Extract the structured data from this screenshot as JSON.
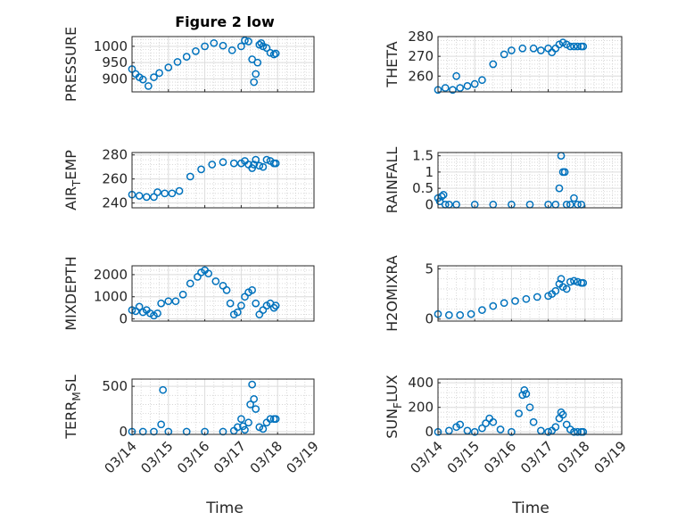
{
  "figure": {
    "title": "Figure 2 low",
    "xlabel": "Time",
    "marker_color": "#0072BD",
    "x_ticks": [
      "03/14",
      "03/15",
      "03/16",
      "03/17",
      "03/18",
      "03/19"
    ]
  },
  "chart_data": [
    {
      "type": "scatter",
      "ylabel": "PRESSURE",
      "title": "Figure 2 low",
      "xlim": [
        "03/14",
        "03/19"
      ],
      "ylim": [
        860,
        1030
      ],
      "yticks": [
        900,
        950,
        1000
      ],
      "grid": true,
      "x_days": [
        0,
        0.1,
        0.2,
        0.3,
        0.45,
        0.6,
        0.75,
        1.0,
        1.25,
        1.5,
        1.75,
        2.0,
        2.25,
        2.5,
        2.75,
        3.0,
        3.1,
        3.2,
        3.3,
        3.35,
        3.4,
        3.45,
        3.5,
        3.55,
        3.6,
        3.7,
        3.8,
        3.9,
        3.95
      ],
      "y": [
        930,
        915,
        905,
        898,
        878,
        905,
        918,
        935,
        952,
        968,
        985,
        1000,
        1010,
        1002,
        988,
        1000,
        1018,
        1015,
        960,
        890,
        915,
        950,
        1005,
        1010,
        1000,
        995,
        980,
        975,
        978
      ]
    },
    {
      "type": "scatter",
      "ylabel": "THETA",
      "xlim": [
        "03/14",
        "03/19"
      ],
      "ylim": [
        252,
        280
      ],
      "yticks": [
        260,
        270,
        280
      ],
      "grid": true,
      "x_days": [
        0,
        0.2,
        0.4,
        0.5,
        0.6,
        0.8,
        1.0,
        1.2,
        1.5,
        1.8,
        2.0,
        2.3,
        2.6,
        2.8,
        3.0,
        3.1,
        3.2,
        3.3,
        3.4,
        3.5,
        3.6,
        3.7,
        3.8,
        3.9,
        3.95
      ],
      "y": [
        253,
        254,
        253,
        260,
        254,
        255,
        256,
        258,
        266,
        271,
        273,
        274,
        274,
        273,
        274,
        272,
        274,
        276,
        277,
        276,
        275,
        275,
        275,
        275,
        275
      ]
    },
    {
      "type": "scatter",
      "ylabel": "AIR_TEMP",
      "xlim": [
        "03/14",
        "03/19"
      ],
      "ylim": [
        236,
        282
      ],
      "yticks": [
        240,
        260,
        280
      ],
      "grid": true,
      "x_days": [
        0,
        0.2,
        0.4,
        0.6,
        0.7,
        0.9,
        1.1,
        1.3,
        1.6,
        1.9,
        2.2,
        2.5,
        2.8,
        3.0,
        3.1,
        3.2,
        3.3,
        3.35,
        3.4,
        3.5,
        3.6,
        3.7,
        3.8,
        3.9,
        3.95
      ],
      "y": [
        247,
        246,
        245,
        245,
        249,
        248,
        248,
        250,
        262,
        268,
        272,
        274,
        273,
        273,
        275,
        272,
        269,
        272,
        276,
        271,
        270,
        276,
        275,
        273,
        273
      ]
    },
    {
      "type": "scatter",
      "ylabel": "RAINFALL",
      "xlim": [
        "03/14",
        "03/19"
      ],
      "ylim": [
        -0.1,
        1.6
      ],
      "yticks": [
        0,
        0.5,
        1,
        1.5
      ],
      "grid": true,
      "x_days": [
        0,
        0.05,
        0.1,
        0.15,
        0.2,
        0.3,
        0.5,
        1.0,
        1.5,
        2.0,
        2.5,
        3.0,
        3.2,
        3.3,
        3.35,
        3.4,
        3.45,
        3.5,
        3.6,
        3.7,
        3.8,
        3.9
      ],
      "y": [
        0.2,
        0.1,
        0.25,
        0.3,
        0,
        0,
        0,
        0,
        0,
        0,
        0,
        0,
        0,
        0.5,
        1.5,
        1.0,
        1.0,
        0,
        0,
        0.2,
        0,
        0
      ]
    },
    {
      "type": "scatter",
      "ylabel": "MIXDEPTH",
      "xlim": [
        "03/14",
        "03/19"
      ],
      "ylim": [
        -100,
        2400
      ],
      "yticks": [
        0,
        1000,
        2000
      ],
      "grid": true,
      "x_days": [
        0,
        0.1,
        0.2,
        0.3,
        0.4,
        0.5,
        0.6,
        0.7,
        0.8,
        1.0,
        1.2,
        1.4,
        1.6,
        1.8,
        1.9,
        2.0,
        2.1,
        2.3,
        2.5,
        2.6,
        2.7,
        2.8,
        2.9,
        3.0,
        3.1,
        3.2,
        3.3,
        3.4,
        3.5,
        3.6,
        3.7,
        3.8,
        3.9,
        3.95
      ],
      "y": [
        400,
        350,
        550,
        300,
        400,
        250,
        150,
        250,
        700,
        800,
        800,
        1100,
        1600,
        1900,
        2100,
        2200,
        2050,
        1700,
        1500,
        1300,
        700,
        200,
        300,
        600,
        1000,
        1200,
        1300,
        700,
        200,
        400,
        600,
        700,
        500,
        600
      ]
    },
    {
      "type": "scatter",
      "ylabel": "H2OMIXRA",
      "xlim": [
        "03/14",
        "03/19"
      ],
      "ylim": [
        -0.2,
        5.3
      ],
      "yticks": [
        0,
        5
      ],
      "grid": true,
      "x_days": [
        0,
        0.3,
        0.6,
        0.9,
        1.2,
        1.5,
        1.8,
        2.1,
        2.4,
        2.7,
        3.0,
        3.1,
        3.2,
        3.3,
        3.35,
        3.4,
        3.5,
        3.6,
        3.7,
        3.8,
        3.9,
        3.95
      ],
      "y": [
        0.5,
        0.4,
        0.4,
        0.5,
        0.9,
        1.3,
        1.6,
        1.8,
        2.0,
        2.2,
        2.3,
        2.5,
        2.8,
        3.5,
        4.0,
        3.2,
        3.0,
        3.7,
        3.8,
        3.7,
        3.6,
        3.6
      ]
    },
    {
      "type": "scatter",
      "ylabel": "TERR_MSL",
      "xlim": [
        "03/14",
        "03/19"
      ],
      "ylim": [
        -30,
        580
      ],
      "yticks": [
        0,
        500
      ],
      "grid": true,
      "x_days": [
        0,
        0.3,
        0.6,
        0.8,
        0.85,
        1.0,
        1.5,
        2.0,
        2.5,
        2.8,
        2.9,
        3.0,
        3.05,
        3.1,
        3.2,
        3.25,
        3.3,
        3.35,
        3.4,
        3.5,
        3.6,
        3.7,
        3.8,
        3.9,
        3.95
      ],
      "y": [
        0,
        0,
        0,
        80,
        460,
        0,
        0,
        0,
        0,
        10,
        50,
        140,
        60,
        20,
        100,
        300,
        520,
        360,
        250,
        50,
        30,
        100,
        140,
        140,
        140
      ]
    },
    {
      "type": "scatter",
      "ylabel": "SUN_FLUX",
      "xlim": [
        "03/14",
        "03/19"
      ],
      "ylim": [
        -20,
        430
      ],
      "yticks": [
        0,
        200,
        400
      ],
      "grid": true,
      "x_days": [
        0,
        0.3,
        0.5,
        0.6,
        0.8,
        1.0,
        1.2,
        1.3,
        1.4,
        1.5,
        1.7,
        2.0,
        2.2,
        2.3,
        2.35,
        2.4,
        2.5,
        2.6,
        2.8,
        3.0,
        3.1,
        3.2,
        3.3,
        3.35,
        3.4,
        3.5,
        3.6,
        3.7,
        3.8,
        3.9,
        3.95
      ],
      "y": [
        0,
        10,
        40,
        60,
        10,
        0,
        30,
        70,
        110,
        80,
        20,
        0,
        150,
        300,
        340,
        310,
        200,
        80,
        10,
        0,
        10,
        40,
        110,
        160,
        140,
        60,
        20,
        0,
        0,
        0,
        0
      ]
    }
  ]
}
